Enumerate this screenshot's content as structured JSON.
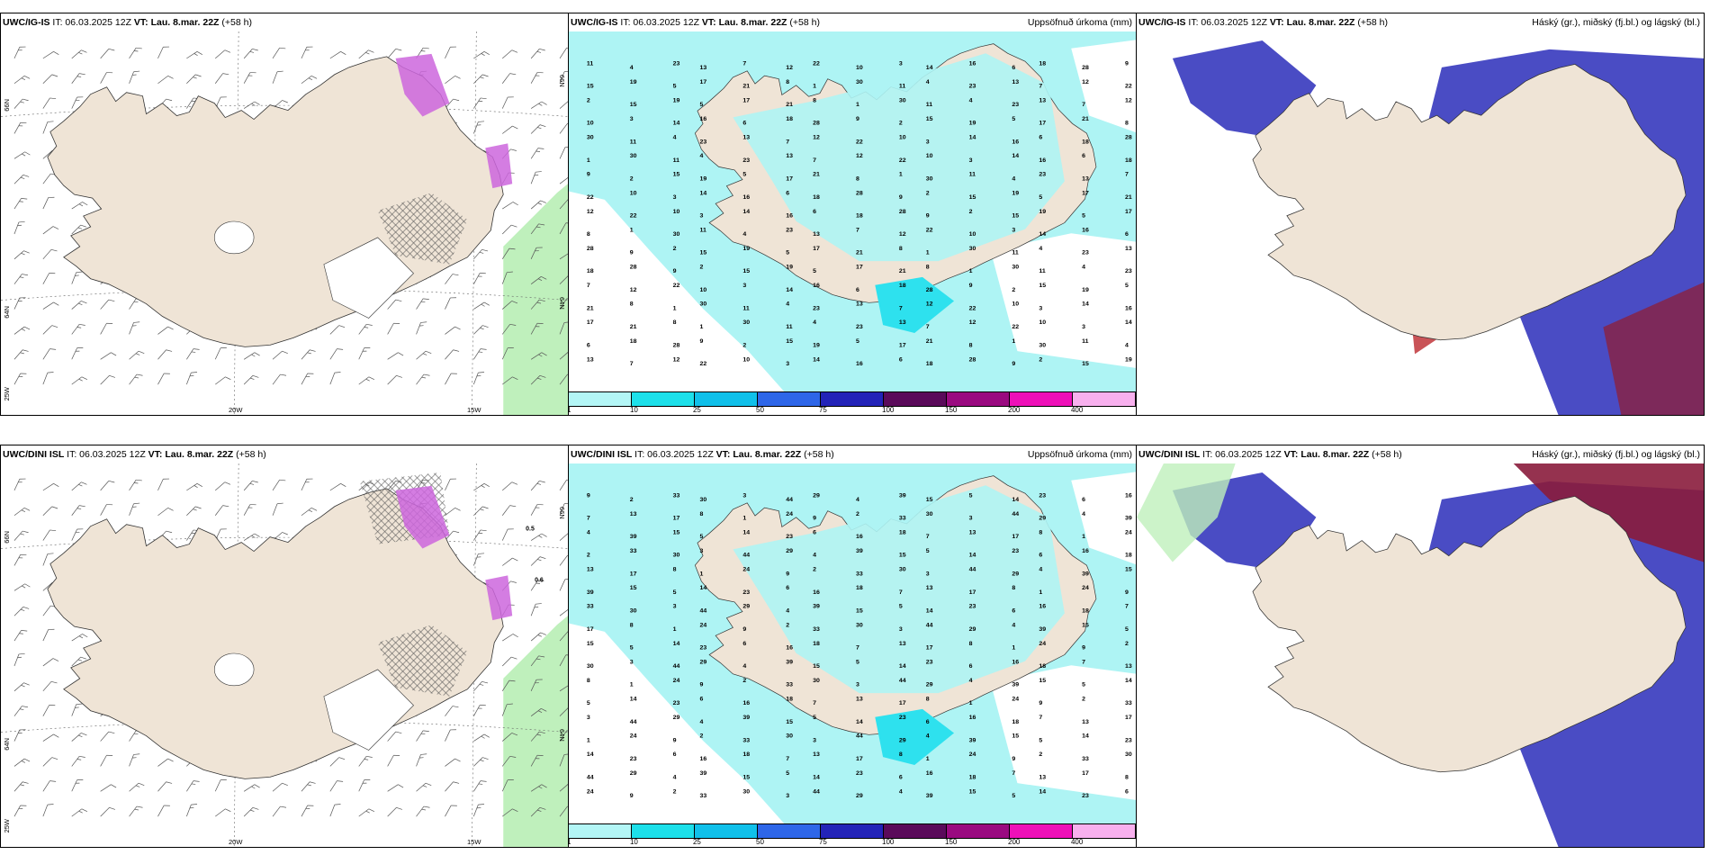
{
  "colors": {
    "land": "#efe4d6",
    "sea": "#ffffff",
    "precip_light": "#aef4f4",
    "precip_mid": "#2ee1ee",
    "low_cloud": "#4a4cc4",
    "high_cloud_red": "#c0353a",
    "icing_pink": "#cc66dd",
    "wind_green": "#bff0bc"
  },
  "panels": [
    {
      "model": "UWC/IG-IS",
      "it_label": "IT: 06.03.2025 12Z",
      "vt_label": "VT: Lau. 8.mar. 22Z",
      "lead": "(+58 h)",
      "type": "wind-icing"
    },
    {
      "model": "UWC/IG-IS",
      "it_label": "IT: 06.03.2025 12Z",
      "vt_label": "VT: Lau. 8.mar. 22Z",
      "lead": "(+58 h)",
      "right_title": "Uppsöfnuð úrkoma (mm)",
      "type": "precip"
    },
    {
      "model": "UWC/IG-IS",
      "it_label": "IT: 06.03.2025 12Z",
      "vt_label": "VT: Lau. 8.mar. 22Z",
      "lead": "(+58 h)",
      "right_title": "Háský (gr.), miðský (fj.bl.) og lágský (bl.)",
      "type": "cloud"
    },
    {
      "model": "UWC/DINI ISL",
      "it_label": "IT: 06.03.2025 12Z",
      "vt_label": "VT: Lau. 8.mar. 22Z",
      "lead": "(+58 h)",
      "type": "wind-icing"
    },
    {
      "model": "UWC/DINI ISL",
      "it_label": "IT: 06.03.2025 12Z",
      "vt_label": "VT: Lau. 8.mar. 22Z",
      "lead": "(+58 h)",
      "right_title": "Uppsöfnuð úrkoma (mm)",
      "type": "precip"
    },
    {
      "model": "UWC/DINI ISL",
      "it_label": "IT: 06.03.2025 12Z",
      "vt_label": "VT: Lau. 8.mar. 22Z",
      "lead": "(+58 h)",
      "right_title": "Háský (gr.), miðský (fj.bl.) og lágský (bl.)",
      "type": "cloud"
    }
  ],
  "axis_labels": {
    "lat_66": "66N",
    "lat_64": "64N",
    "lon_25": "25W",
    "lon_20": "20W",
    "lon_15": "15W"
  },
  "colorbar": {
    "labels": [
      "1",
      "10",
      "25",
      "50",
      "75",
      "100",
      "150",
      "200",
      "400"
    ],
    "colors": [
      "#b3f6f6",
      "#1de0ea",
      "#10c0ea",
      "#2e66e8",
      "#2323b8",
      "#5a0a5a",
      "#9a0a80",
      "#ee10b8",
      "#f8b0ee"
    ]
  },
  "precip_numbers_top": [
    "12",
    "18",
    "17",
    "23",
    "14",
    "15",
    "30",
    "22",
    "28",
    "21",
    "13",
    "16",
    "19",
    "11",
    "10",
    "9",
    "8",
    "7",
    "6",
    "5",
    "4",
    "3",
    "2",
    "1"
  ],
  "precip_numbers_bottom": [
    "13",
    "16",
    "14",
    "39",
    "44",
    "33",
    "24",
    "17",
    "18",
    "23",
    "15",
    "29",
    "30",
    "9",
    "8",
    "7",
    "6",
    "5",
    "4",
    "3",
    "2",
    "1"
  ],
  "icing_labels": [
    "0.5",
    "0.6"
  ]
}
